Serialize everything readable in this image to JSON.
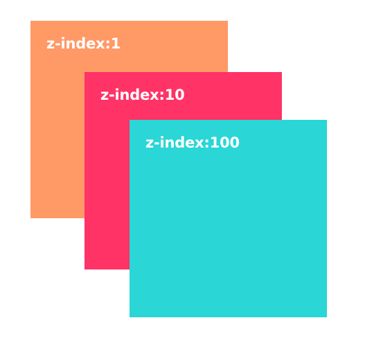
{
  "boxes": [
    {
      "label": "z-index:1",
      "z_index": 1,
      "color": "#FF9966"
    },
    {
      "label": "z-index:10",
      "z_index": 10,
      "color": "#FF3366"
    },
    {
      "label": "z-index:100",
      "z_index": 100,
      "color": "#2AD6D6"
    }
  ]
}
